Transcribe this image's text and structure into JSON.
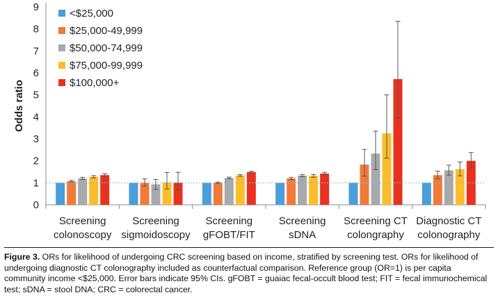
{
  "chart_data": {
    "type": "bar",
    "ylabel": "Odds ratio",
    "ylim": [
      0,
      9
    ],
    "yticks": [
      "0",
      "1",
      "2",
      "3",
      "4",
      "5",
      "6",
      "7",
      "8",
      "9"
    ],
    "reference_line": 1,
    "legend_position": "top-left",
    "categories": [
      [
        "Screening",
        "colonoscopy"
      ],
      [
        "Screening",
        "sigmoidoscopy"
      ],
      [
        "Screening",
        "gFOBT/FIT"
      ],
      [
        "Screening",
        "sDNA"
      ],
      [
        "Screening CT",
        "colongraphy"
      ],
      [
        "Diagnostic CT",
        "colonography"
      ]
    ],
    "series": [
      {
        "name": "<$25,000",
        "color": "#4a9fd8",
        "values": [
          1,
          1,
          1,
          1,
          1,
          1
        ],
        "err_low": [
          null,
          null,
          null,
          null,
          null,
          null
        ],
        "err_high": [
          null,
          null,
          null,
          null,
          null,
          null
        ]
      },
      {
        "name": "$25,000-49,999",
        "color": "#f07a38",
        "values": [
          1.07,
          1.0,
          1.0,
          1.2,
          1.83,
          1.35
        ],
        "err_low": [
          1.03,
          0.85,
          0.97,
          1.15,
          1.3,
          1.18
        ],
        "err_high": [
          1.11,
          1.18,
          1.03,
          1.25,
          2.52,
          1.53
        ]
      },
      {
        "name": "$50,000-74,999",
        "color": "#a7a9ab",
        "values": [
          1.2,
          0.93,
          1.22,
          1.33,
          2.33,
          1.57
        ],
        "err_low": [
          1.15,
          0.7,
          1.18,
          1.28,
          1.6,
          1.35
        ],
        "err_high": [
          1.25,
          1.15,
          1.26,
          1.38,
          3.35,
          1.8
        ]
      },
      {
        "name": "$75,000-99,999",
        "color": "#fbbd2a",
        "values": [
          1.28,
          1.02,
          1.34,
          1.32,
          3.25,
          1.62
        ],
        "err_low": [
          1.22,
          0.72,
          1.3,
          1.25,
          2.12,
          1.32
        ],
        "err_high": [
          1.33,
          1.47,
          1.38,
          1.38,
          5.0,
          1.95
        ]
      },
      {
        "name": "$100,000+",
        "color": "#e8321e",
        "values": [
          1.35,
          1.01,
          1.49,
          1.42,
          5.72,
          2.0
        ],
        "err_low": [
          1.29,
          0.66,
          1.45,
          1.36,
          3.95,
          1.67
        ],
        "err_high": [
          1.41,
          1.48,
          1.53,
          1.48,
          8.35,
          2.38
        ]
      }
    ]
  },
  "caption": {
    "label": "Figure 3.",
    "text": " ORs for likelihood of undergoing CRC screening based on income, stratified by screening test. ORs for likelihood of undergoing diagnostic CT colonography included as counterfactual comparison. Reference group (OR=1) is per capita community income <$25,000. Error bars indicate 95% CIs. gFOBT = guaiac fecal-occult blood test; FIT = fecal immunochemical test; sDNA = stool DNA; CRC = colorectal cancer."
  }
}
